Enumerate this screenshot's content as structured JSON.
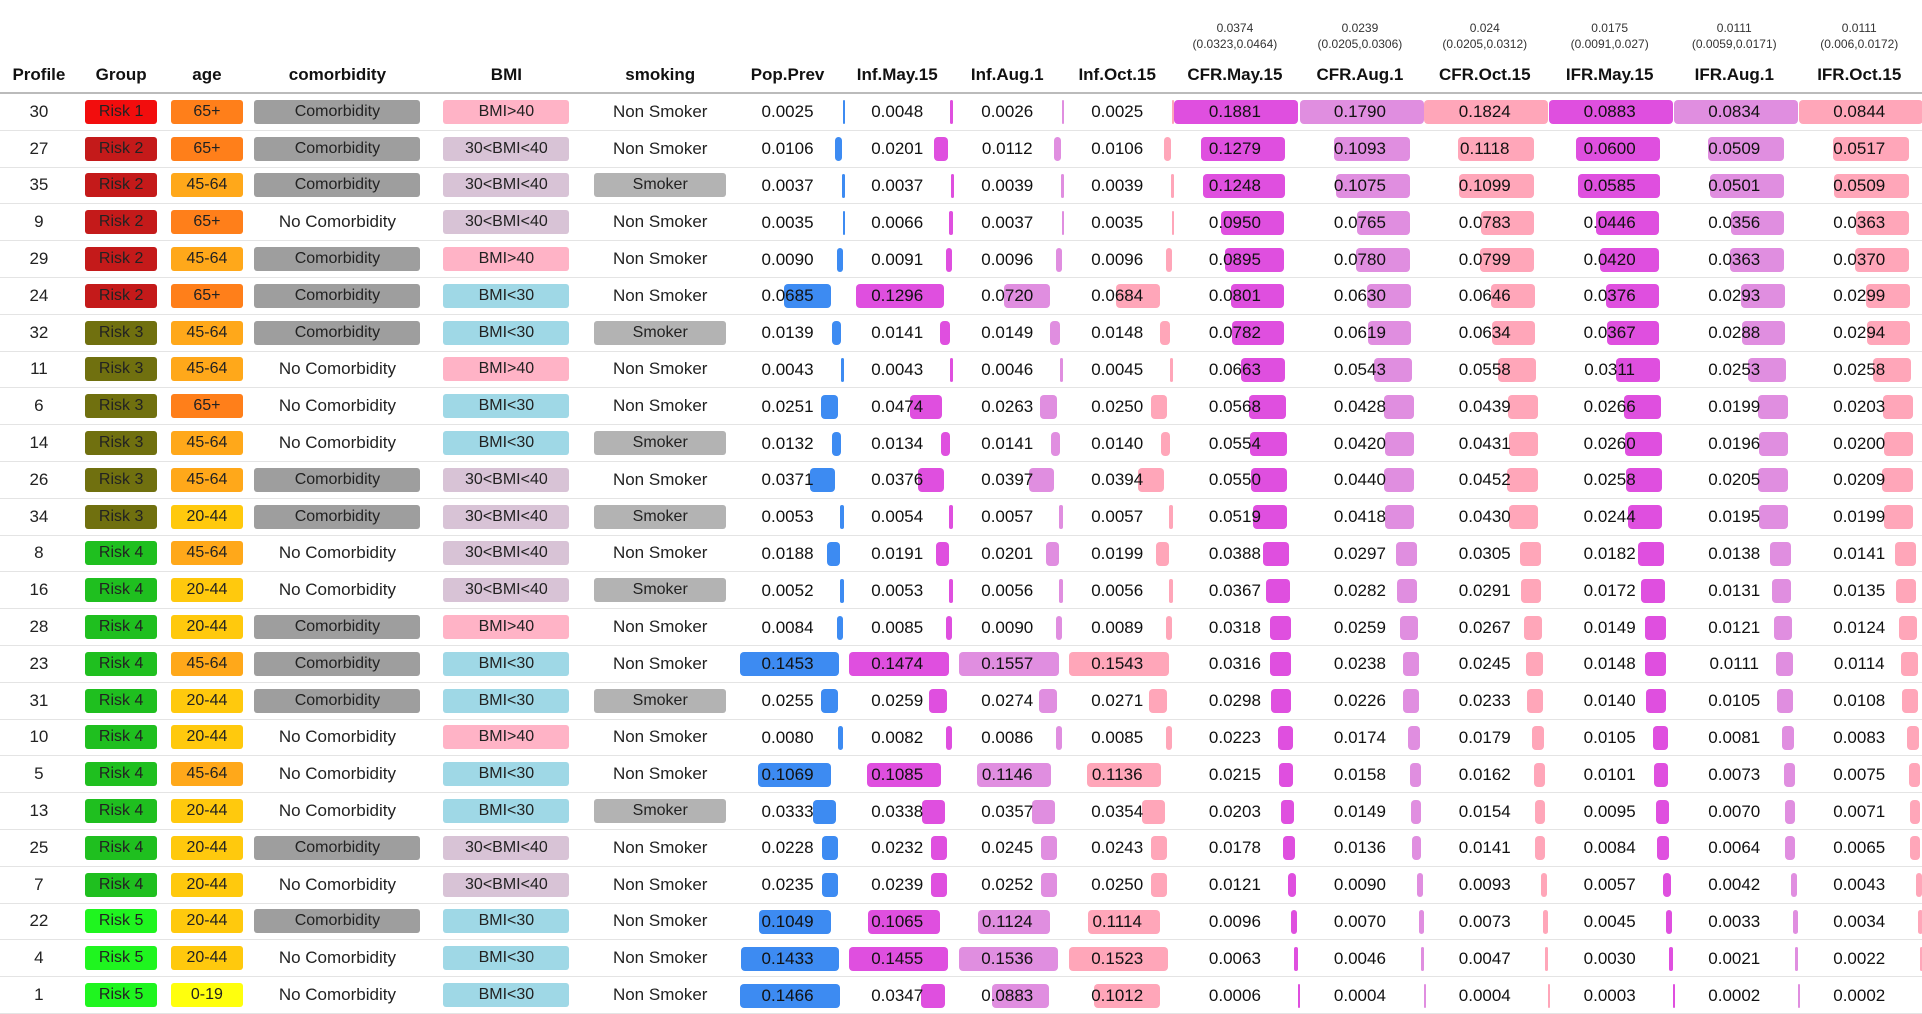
{
  "columns": [
    "Profile",
    "Group",
    "age",
    "comorbidity",
    "BMI",
    "smoking",
    "Pop.Prev",
    "Inf.May.15",
    "Inf.Aug.1",
    "Inf.Oct.15",
    "CFR.May.15",
    "CFR.Aug.1",
    "CFR.Oct.15",
    "IFR.May.15",
    "IFR.Aug.1",
    "IFR.Oct.15"
  ],
  "summary": {
    "CFR.May.15": {
      "estimate": "0.0374",
      "interval": "(0.0323,0.0464)"
    },
    "CFR.Aug.1": {
      "estimate": "0.0239",
      "interval": "(0.0205,0.0306)"
    },
    "CFR.Oct.15": {
      "estimate": "0.024",
      "interval": "(0.0205,0.0312)"
    },
    "IFR.May.15": {
      "estimate": "0.0175",
      "interval": "(0.0091,0.027)"
    },
    "IFR.Aug.1": {
      "estimate": "0.0111",
      "interval": "(0.0059,0.0171)"
    },
    "IFR.Oct.15": {
      "estimate": "0.0111",
      "interval": "(0.006,0.0172)"
    }
  },
  "colors": {
    "Risk 1": "#f20d0d",
    "Risk 2": "#c41a1a",
    "Risk 3": "#70700f",
    "Risk 4": "#1fbf1f",
    "Risk 5": "#1ff51f",
    "65+": "#ff7f1a",
    "45-64": "#ffa81a",
    "20-44": "#ffc90d",
    "0-19": "#ffff0d",
    "BMI>40": "#ffb3c6",
    "30<BMI<40": "#d8c3d6",
    "BMI<30": "#9fd8e6",
    "Comorbidity": "#9e9e9e",
    "Smoker": "#b3b3b3",
    "Pop.Prev": "#3d8bf2",
    "Inf.May.15": "#df4fdf",
    "Inf.Aug.1": "#e08ee0",
    "Inf.Oct.15": "#ffa6b9",
    "CFR.May.15": "#df4fdf",
    "CFR.Aug.1": "#e08ee0",
    "CFR.Oct.15": "#ffa6b9",
    "IFR.May.15": "#df4fdf",
    "IFR.Aug.1": "#e08ee0",
    "IFR.Oct.15": "#ffa6b9"
  },
  "rows": [
    [
      "30",
      "Risk 1",
      "65+",
      "Comorbidity",
      "BMI>40",
      "Non Smoker",
      "0.0025",
      "0.0048",
      "0.0026",
      "0.0025",
      "0.1881",
      "0.1790",
      "0.1824",
      "0.0883",
      "0.0834",
      "0.0844"
    ],
    [
      "27",
      "Risk 2",
      "65+",
      "Comorbidity",
      "30<BMI<40",
      "Non Smoker",
      "0.0106",
      "0.0201",
      "0.0112",
      "0.0106",
      "0.1279",
      "0.1093",
      "0.1118",
      "0.0600",
      "0.0509",
      "0.0517"
    ],
    [
      "35",
      "Risk 2",
      "45-64",
      "Comorbidity",
      "30<BMI<40",
      "Smoker",
      "0.0037",
      "0.0037",
      "0.0039",
      "0.0039",
      "0.1248",
      "0.1075",
      "0.1099",
      "0.0585",
      "0.0501",
      "0.0509"
    ],
    [
      "9",
      "Risk 2",
      "65+",
      "No Comorbidity",
      "30<BMI<40",
      "Non Smoker",
      "0.0035",
      "0.0066",
      "0.0037",
      "0.0035",
      "0.0950",
      "0.0765",
      "0.0783",
      "0.0446",
      "0.0356",
      "0.0363"
    ],
    [
      "29",
      "Risk 2",
      "45-64",
      "Comorbidity",
      "BMI>40",
      "Non Smoker",
      "0.0090",
      "0.0091",
      "0.0096",
      "0.0096",
      "0.0895",
      "0.0780",
      "0.0799",
      "0.0420",
      "0.0363",
      "0.0370"
    ],
    [
      "24",
      "Risk 2",
      "65+",
      "Comorbidity",
      "BMI<30",
      "Non Smoker",
      "0.0685",
      "0.1296",
      "0.0720",
      "0.0684",
      "0.0801",
      "0.0630",
      "0.0646",
      "0.0376",
      "0.0293",
      "0.0299"
    ],
    [
      "32",
      "Risk 3",
      "45-64",
      "Comorbidity",
      "BMI<30",
      "Smoker",
      "0.0139",
      "0.0141",
      "0.0149",
      "0.0148",
      "0.0782",
      "0.0619",
      "0.0634",
      "0.0367",
      "0.0288",
      "0.0294"
    ],
    [
      "11",
      "Risk 3",
      "45-64",
      "No Comorbidity",
      "BMI>40",
      "Non Smoker",
      "0.0043",
      "0.0043",
      "0.0046",
      "0.0045",
      "0.0663",
      "0.0543",
      "0.0558",
      "0.0311",
      "0.0253",
      "0.0258"
    ],
    [
      "6",
      "Risk 3",
      "65+",
      "No Comorbidity",
      "BMI<30",
      "Non Smoker",
      "0.0251",
      "0.0474",
      "0.0263",
      "0.0250",
      "0.0568",
      "0.0428",
      "0.0439",
      "0.0266",
      "0.0199",
      "0.0203"
    ],
    [
      "14",
      "Risk 3",
      "45-64",
      "No Comorbidity",
      "BMI<30",
      "Smoker",
      "0.0132",
      "0.0134",
      "0.0141",
      "0.0140",
      "0.0554",
      "0.0420",
      "0.0431",
      "0.0260",
      "0.0196",
      "0.0200"
    ],
    [
      "26",
      "Risk 3",
      "45-64",
      "Comorbidity",
      "30<BMI<40",
      "Non Smoker",
      "0.0371",
      "0.0376",
      "0.0397",
      "0.0394",
      "0.0550",
      "0.0440",
      "0.0452",
      "0.0258",
      "0.0205",
      "0.0209"
    ],
    [
      "34",
      "Risk 3",
      "20-44",
      "Comorbidity",
      "30<BMI<40",
      "Smoker",
      "0.0053",
      "0.0054",
      "0.0057",
      "0.0057",
      "0.0519",
      "0.0418",
      "0.0430",
      "0.0244",
      "0.0195",
      "0.0199"
    ],
    [
      "8",
      "Risk 4",
      "45-64",
      "No Comorbidity",
      "30<BMI<40",
      "Non Smoker",
      "0.0188",
      "0.0191",
      "0.0201",
      "0.0199",
      "0.0388",
      "0.0297",
      "0.0305",
      "0.0182",
      "0.0138",
      "0.0141"
    ],
    [
      "16",
      "Risk 4",
      "20-44",
      "No Comorbidity",
      "30<BMI<40",
      "Smoker",
      "0.0052",
      "0.0053",
      "0.0056",
      "0.0056",
      "0.0367",
      "0.0282",
      "0.0291",
      "0.0172",
      "0.0131",
      "0.0135"
    ],
    [
      "28",
      "Risk 4",
      "20-44",
      "Comorbidity",
      "BMI>40",
      "Non Smoker",
      "0.0084",
      "0.0085",
      "0.0090",
      "0.0089",
      "0.0318",
      "0.0259",
      "0.0267",
      "0.0149",
      "0.0121",
      "0.0124"
    ],
    [
      "23",
      "Risk 4",
      "45-64",
      "Comorbidity",
      "BMI<30",
      "Non Smoker",
      "0.1453",
      "0.1474",
      "0.1557",
      "0.1543",
      "0.0316",
      "0.0238",
      "0.0245",
      "0.0148",
      "0.0111",
      "0.0114"
    ],
    [
      "31",
      "Risk 4",
      "20-44",
      "Comorbidity",
      "BMI<30",
      "Smoker",
      "0.0255",
      "0.0259",
      "0.0274",
      "0.0271",
      "0.0298",
      "0.0226",
      "0.0233",
      "0.0140",
      "0.0105",
      "0.0108"
    ],
    [
      "10",
      "Risk 4",
      "20-44",
      "No Comorbidity",
      "BMI>40",
      "Non Smoker",
      "0.0080",
      "0.0082",
      "0.0086",
      "0.0085",
      "0.0223",
      "0.0174",
      "0.0179",
      "0.0105",
      "0.0081",
      "0.0083"
    ],
    [
      "5",
      "Risk 4",
      "45-64",
      "No Comorbidity",
      "BMI<30",
      "Non Smoker",
      "0.1069",
      "0.1085",
      "0.1146",
      "0.1136",
      "0.0215",
      "0.0158",
      "0.0162",
      "0.0101",
      "0.0073",
      "0.0075"
    ],
    [
      "13",
      "Risk 4",
      "20-44",
      "No Comorbidity",
      "BMI<30",
      "Smoker",
      "0.0333",
      "0.0338",
      "0.0357",
      "0.0354",
      "0.0203",
      "0.0149",
      "0.0154",
      "0.0095",
      "0.0070",
      "0.0071"
    ],
    [
      "25",
      "Risk 4",
      "20-44",
      "Comorbidity",
      "30<BMI<40",
      "Non Smoker",
      "0.0228",
      "0.0232",
      "0.0245",
      "0.0243",
      "0.0178",
      "0.0136",
      "0.0141",
      "0.0084",
      "0.0064",
      "0.0065"
    ],
    [
      "7",
      "Risk 4",
      "20-44",
      "No Comorbidity",
      "30<BMI<40",
      "Non Smoker",
      "0.0235",
      "0.0239",
      "0.0252",
      "0.0250",
      "0.0121",
      "0.0090",
      "0.0093",
      "0.0057",
      "0.0042",
      "0.0043"
    ],
    [
      "22",
      "Risk 5",
      "20-44",
      "Comorbidity",
      "BMI<30",
      "Non Smoker",
      "0.1049",
      "0.1065",
      "0.1124",
      "0.1114",
      "0.0096",
      "0.0070",
      "0.0073",
      "0.0045",
      "0.0033",
      "0.0034"
    ],
    [
      "4",
      "Risk 5",
      "20-44",
      "No Comorbidity",
      "BMI<30",
      "Non Smoker",
      "0.1433",
      "0.1455",
      "0.1536",
      "0.1523",
      "0.0063",
      "0.0046",
      "0.0047",
      "0.0030",
      "0.0021",
      "0.0022"
    ],
    [
      "1",
      "Risk 5",
      "0-19",
      "No Comorbidity",
      "BMI<30",
      "Non Smoker",
      "0.1466",
      "0.0347",
      "0.0883",
      "0.1012",
      "0.0006",
      "0.0004",
      "0.0004",
      "0.0003",
      "0.0002",
      "0.0002"
    ]
  ]
}
